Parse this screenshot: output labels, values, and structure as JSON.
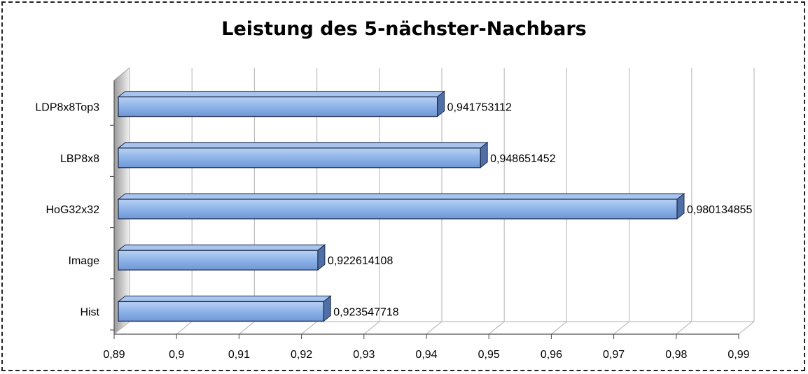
{
  "chart_data": {
    "type": "bar",
    "orientation": "horizontal",
    "three_d": true,
    "title": "Leistung des 5-nächster-Nachbars",
    "categories": [
      "LDP8x8Top3",
      "LBP8x8",
      "HoG32x32",
      "Image",
      "Hist"
    ],
    "values": [
      0.941753112,
      0.948651452,
      0.980134855,
      0.922614108,
      0.923547718
    ],
    "value_labels": [
      "0,941753112",
      "0,948651452",
      "0,980134855",
      "0,922614108",
      "0,923547718"
    ],
    "x_ticks": [
      "0,89",
      "0,9",
      "0,91",
      "0,92",
      "0,93",
      "0,94",
      "0,95",
      "0,96",
      "0,97",
      "0,98",
      "0,99"
    ],
    "xlim": [
      0.89,
      0.99
    ],
    "xlabel": "",
    "ylabel": "",
    "grid": true,
    "legend": "none",
    "colors": {
      "bar": "#8db3e8",
      "bar_edge": "#1f2f4f",
      "grid": "#bfbfbf"
    }
  }
}
